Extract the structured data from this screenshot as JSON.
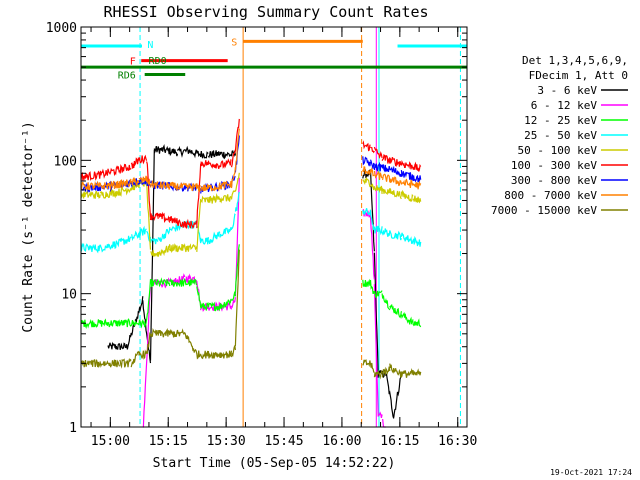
{
  "chart_data": {
    "type": "line",
    "title": "RHESSI Observing Summary Count Rates",
    "xlabel": "Start Time (05-Sep-05 14:52:22)",
    "ylabel": "Count Rate (s⁻¹ detector⁻¹)",
    "yscale": "log",
    "ylim": [
      1,
      1000
    ],
    "xlim_min": [
      0,
      100
    ],
    "x_ticks": [
      {
        "min": 7.6,
        "label": "15:00"
      },
      {
        "min": 22.6,
        "label": "15:15"
      },
      {
        "min": 37.6,
        "label": "15:30"
      },
      {
        "min": 52.6,
        "label": "15:45"
      },
      {
        "min": 67.6,
        "label": "16:00"
      },
      {
        "min": 82.6,
        "label": "16:15"
      },
      {
        "min": 97.6,
        "label": "16:30"
      }
    ],
    "y_ticks": [
      {
        "value": 1,
        "label": "1"
      },
      {
        "value": 10,
        "label": "10"
      },
      {
        "value": 100,
        "label": "100"
      },
      {
        "value": 1000,
        "label": "1000"
      }
    ],
    "legend_placement": "right",
    "legend_title": [
      "Det 1,3,4,5,6,9,",
      "FDecim 1, Att 0"
    ],
    "series": [
      {
        "name": "3 - 6 keV",
        "color": "#000000",
        "points": [
          [
            7,
            4
          ],
          [
            9,
            4
          ],
          [
            12,
            4
          ],
          [
            14,
            6
          ],
          [
            16,
            9
          ],
          [
            18,
            3
          ],
          [
            19,
            120
          ],
          [
            21,
            120
          ],
          [
            25,
            115
          ],
          [
            28,
            118
          ],
          [
            30,
            112
          ],
          [
            33,
            110
          ],
          [
            36,
            112
          ],
          [
            39,
            110
          ],
          [
            40,
            112
          ],
          [
            73,
            78
          ],
          [
            75,
            80
          ],
          [
            76,
            20
          ],
          [
            77,
            2.5
          ],
          [
            79,
            2.5
          ],
          [
            81,
            1.2
          ],
          [
            83,
            2.5
          ]
        ]
      },
      {
        "name": "6 - 12 keV",
        "color": "#ff00ff",
        "points": [
          [
            16,
            0.8
          ],
          [
            18,
            12
          ],
          [
            20,
            12
          ],
          [
            23,
            12
          ],
          [
            27,
            13
          ],
          [
            30,
            13
          ],
          [
            31,
            8
          ],
          [
            33,
            8
          ],
          [
            36,
            8
          ],
          [
            39,
            8
          ],
          [
            40,
            9
          ],
          [
            41,
            70
          ],
          [
            73,
            40
          ],
          [
            75,
            40
          ],
          [
            76,
            12
          ],
          [
            77,
            1.2
          ],
          [
            78,
            1.2
          ],
          [
            79,
            0.8
          ]
        ]
      },
      {
        "name": "12 - 25 keV",
        "color": "#00ff00",
        "points": [
          [
            0,
            6
          ],
          [
            7,
            6
          ],
          [
            13,
            6
          ],
          [
            15,
            6
          ],
          [
            17,
            6
          ],
          [
            18,
            12
          ],
          [
            20,
            12
          ],
          [
            23,
            12
          ],
          [
            27,
            12
          ],
          [
            30,
            12
          ],
          [
            31,
            8
          ],
          [
            33,
            8
          ],
          [
            36,
            8
          ],
          [
            39,
            9
          ],
          [
            40,
            10
          ],
          [
            41,
            25
          ],
          [
            73,
            12
          ],
          [
            75,
            12
          ],
          [
            76,
            10
          ],
          [
            78,
            10
          ],
          [
            80,
            8
          ],
          [
            83,
            7
          ],
          [
            86,
            6
          ],
          [
            88,
            6
          ]
        ]
      },
      {
        "name": "25 - 50 keV",
        "color": "#00ffff",
        "points": [
          [
            0,
            22
          ],
          [
            5,
            22
          ],
          [
            10,
            24
          ],
          [
            13,
            26
          ],
          [
            15,
            28
          ],
          [
            17,
            30
          ],
          [
            18,
            25
          ],
          [
            20,
            25
          ],
          [
            23,
            30
          ],
          [
            27,
            33
          ],
          [
            30,
            33
          ],
          [
            31,
            25
          ],
          [
            33,
            25
          ],
          [
            36,
            28
          ],
          [
            39,
            30
          ],
          [
            40,
            40
          ],
          [
            41,
            55
          ],
          [
            73,
            42
          ],
          [
            75,
            40
          ],
          [
            76,
            30
          ],
          [
            78,
            30
          ],
          [
            80,
            28
          ],
          [
            83,
            27
          ],
          [
            86,
            25
          ],
          [
            88,
            24
          ]
        ]
      },
      {
        "name": "50 - 100 keV",
        "color": "#cccc00",
        "points": [
          [
            0,
            55
          ],
          [
            5,
            55
          ],
          [
            10,
            58
          ],
          [
            13,
            62
          ],
          [
            15,
            66
          ],
          [
            17,
            68
          ],
          [
            18,
            20
          ],
          [
            20,
            20
          ],
          [
            23,
            22
          ],
          [
            27,
            22
          ],
          [
            30,
            22
          ],
          [
            31,
            50
          ],
          [
            33,
            50
          ],
          [
            36,
            52
          ],
          [
            39,
            52
          ],
          [
            40,
            58
          ],
          [
            41,
            80
          ],
          [
            73,
            70
          ],
          [
            75,
            68
          ],
          [
            76,
            62
          ],
          [
            78,
            60
          ],
          [
            80,
            58
          ],
          [
            83,
            55
          ],
          [
            86,
            52
          ],
          [
            88,
            50
          ]
        ]
      },
      {
        "name": "100 - 300 keV",
        "color": "#ff0000",
        "points": [
          [
            0,
            75
          ],
          [
            5,
            78
          ],
          [
            10,
            85
          ],
          [
            13,
            90
          ],
          [
            15,
            100
          ],
          [
            17,
            105
          ],
          [
            18,
            38
          ],
          [
            20,
            38
          ],
          [
            23,
            36
          ],
          [
            27,
            33
          ],
          [
            30,
            33
          ],
          [
            31,
            95
          ],
          [
            33,
            95
          ],
          [
            36,
            92
          ],
          [
            39,
            95
          ],
          [
            40,
            120
          ],
          [
            41,
            200
          ],
          [
            73,
            130
          ],
          [
            75,
            125
          ],
          [
            76,
            120
          ],
          [
            78,
            105
          ],
          [
            80,
            100
          ],
          [
            83,
            95
          ],
          [
            86,
            90
          ],
          [
            88,
            85
          ]
        ]
      },
      {
        "name": "300 - 800 keV",
        "color": "#0000ff",
        "points": [
          [
            0,
            62
          ],
          [
            5,
            63
          ],
          [
            10,
            65
          ],
          [
            13,
            68
          ],
          [
            15,
            70
          ],
          [
            17,
            70
          ],
          [
            18,
            65
          ],
          [
            20,
            65
          ],
          [
            23,
            64
          ],
          [
            27,
            63
          ],
          [
            30,
            62
          ],
          [
            31,
            60
          ],
          [
            33,
            62
          ],
          [
            36,
            64
          ],
          [
            39,
            66
          ],
          [
            40,
            80
          ],
          [
            41,
            150
          ],
          [
            73,
            100
          ],
          [
            75,
            95
          ],
          [
            76,
            90
          ],
          [
            78,
            88
          ],
          [
            80,
            85
          ],
          [
            83,
            80
          ],
          [
            86,
            75
          ],
          [
            88,
            72
          ]
        ]
      },
      {
        "name": "800 - 7000 keV",
        "color": "#ff8000",
        "points": [
          [
            0,
            64
          ],
          [
            5,
            64
          ],
          [
            10,
            66
          ],
          [
            13,
            68
          ],
          [
            15,
            70
          ],
          [
            17,
            72
          ],
          [
            18,
            66
          ],
          [
            20,
            65
          ],
          [
            23,
            64
          ],
          [
            27,
            63
          ],
          [
            30,
            63
          ],
          [
            31,
            62
          ],
          [
            33,
            62
          ],
          [
            36,
            64
          ],
          [
            39,
            66
          ],
          [
            40,
            85
          ],
          [
            41,
            170
          ],
          [
            73,
            85
          ],
          [
            75,
            82
          ],
          [
            76,
            78
          ],
          [
            78,
            75
          ],
          [
            80,
            72
          ],
          [
            83,
            68
          ],
          [
            86,
            66
          ],
          [
            88,
            64
          ]
        ]
      },
      {
        "name": "7000 - 15000 keV",
        "color": "#808000",
        "points": [
          [
            0,
            3
          ],
          [
            5,
            3
          ],
          [
            10,
            3
          ],
          [
            13,
            3
          ],
          [
            15,
            3.5
          ],
          [
            17,
            3.5
          ],
          [
            18,
            5
          ],
          [
            20,
            5
          ],
          [
            23,
            5
          ],
          [
            27,
            5
          ],
          [
            30,
            3.5
          ],
          [
            33,
            3.5
          ],
          [
            36,
            3.5
          ],
          [
            39,
            3.5
          ],
          [
            40,
            4
          ],
          [
            41,
            20
          ],
          [
            73,
            3
          ],
          [
            75,
            3
          ],
          [
            76,
            2.5
          ],
          [
            78,
            2.5
          ],
          [
            80,
            2.8
          ],
          [
            83,
            2.5
          ],
          [
            86,
            2.5
          ],
          [
            88,
            2.5
          ]
        ]
      }
    ],
    "bars": [
      {
        "label": "N",
        "color": "#00ffff",
        "level": 720,
        "segments": [
          [
            0,
            15.8
          ],
          [
            82,
            100
          ]
        ]
      },
      {
        "label": "F",
        "color": "#ff0000",
        "level": 560,
        "segments": [
          [
            15.6,
            38
          ]
        ]
      },
      {
        "label": "RD0",
        "color": "#008000",
        "level": 500,
        "segments": [
          [
            0,
            100
          ]
        ]
      },
      {
        "label": "RD6",
        "color": "#008000",
        "level": 440,
        "segments": [
          [
            16.5,
            27
          ]
        ]
      },
      {
        "label": "S",
        "color": "#ff8000",
        "level": 780,
        "segments": [
          [
            42,
            73
          ]
        ]
      }
    ],
    "vlines": [
      {
        "min": 15.3,
        "color": "#00ffff",
        "style": "dashed"
      },
      {
        "min": 42,
        "color": "#ff8000",
        "style": "solid"
      },
      {
        "min": 72.7,
        "color": "#ff8000",
        "style": "dashed"
      },
      {
        "min": 76.5,
        "color": "#ff00ff",
        "style": "solid"
      },
      {
        "min": 77.2,
        "color": "#00ffff",
        "style": "solid"
      },
      {
        "min": 98.3,
        "color": "#00ffff",
        "style": "dashed"
      }
    ],
    "timestamp": "19-Oct-2021 17:24"
  }
}
